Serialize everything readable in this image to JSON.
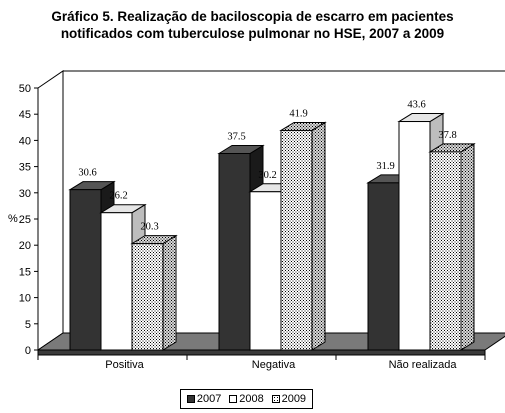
{
  "chart_data": {
    "type": "bar",
    "title": "Gráfico 5. Realização de baciloscopia de escarro em pacientes",
    "subtitle": "notificados com tuberculose pulmonar no HSE, 2007 a 2009",
    "ylabel": "%",
    "xlabel": "",
    "ylim": [
      0,
      50
    ],
    "yticks": [
      "0",
      "5",
      "10",
      "15",
      "20",
      "25",
      "30",
      "35",
      "40",
      "45",
      "50"
    ],
    "categories": [
      "Positiva",
      "Negativa",
      "Não realizada"
    ],
    "series": [
      {
        "name": "2007",
        "values": [
          30.6,
          37.5,
          31.9
        ],
        "labels": [
          "30.6",
          "37.5",
          "31.9"
        ],
        "color": "#333333"
      },
      {
        "name": "2008",
        "values": [
          26.2,
          30.2,
          43.6
        ],
        "labels": [
          "26.2",
          "30.2",
          "43.6"
        ],
        "color": "#ffffff"
      },
      {
        "name": "2009",
        "values": [
          20.3,
          41.9,
          37.8
        ],
        "labels": [
          "20.3",
          "41.9",
          "37.8"
        ],
        "color": "dotted"
      }
    ],
    "grid": false,
    "legend_position": "bottom",
    "style": "3d-clustered-bar"
  }
}
